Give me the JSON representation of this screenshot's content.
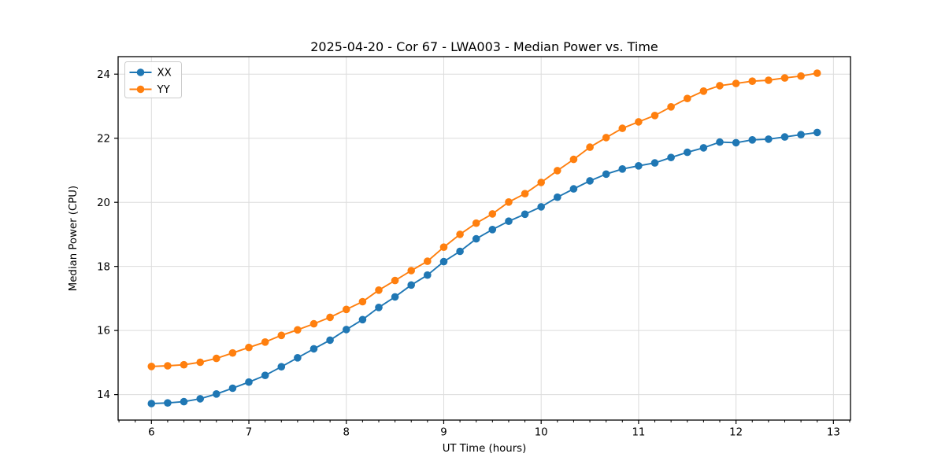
{
  "figure": {
    "background": "#ffffff"
  },
  "chart_data": {
    "type": "line",
    "title": "2025-04-20 - Cor 67 - LWA003 - Median Power vs. Time",
    "xlabel": "UT Time (hours)",
    "ylabel": "Median Power (CPU)",
    "x": [
      6.0,
      6.1667,
      6.3333,
      6.5,
      6.6667,
      6.8333,
      7.0,
      7.1667,
      7.3333,
      7.5,
      7.6667,
      7.8333,
      8.0,
      8.1667,
      8.3333,
      8.5,
      8.6667,
      8.8333,
      9.0,
      9.1667,
      9.3333,
      9.5,
      9.6667,
      9.8333,
      10.0,
      10.1667,
      10.3333,
      10.5,
      10.6667,
      10.8333,
      11.0,
      11.1667,
      11.3333,
      11.5,
      11.6667,
      11.8333,
      12.0,
      12.1667,
      12.3333,
      12.5,
      12.6667,
      12.8333
    ],
    "series": [
      {
        "name": "XX",
        "color": "#1f77b4",
        "values": [
          13.72,
          13.74,
          13.78,
          13.87,
          14.02,
          14.2,
          14.39,
          14.6,
          14.87,
          15.15,
          15.43,
          15.7,
          16.03,
          16.34,
          16.72,
          17.05,
          17.42,
          17.73,
          18.15,
          18.47,
          18.86,
          19.15,
          19.41,
          19.63,
          19.86,
          20.16,
          20.42,
          20.67,
          20.88,
          21.04,
          21.14,
          21.23,
          21.4,
          21.56,
          21.7,
          21.88,
          21.86,
          21.95,
          21.97,
          22.04,
          22.11,
          22.18
        ]
      },
      {
        "name": "YY",
        "color": "#ff7f0e",
        "values": [
          14.88,
          14.9,
          14.93,
          15.01,
          15.13,
          15.3,
          15.47,
          15.64,
          15.85,
          16.02,
          16.21,
          16.41,
          16.66,
          16.9,
          17.26,
          17.56,
          17.87,
          18.16,
          18.6,
          19.0,
          19.35,
          19.64,
          20.01,
          20.27,
          20.62,
          20.99,
          21.34,
          21.72,
          22.02,
          22.31,
          22.51,
          22.71,
          22.98,
          23.24,
          23.47,
          23.64,
          23.71,
          23.78,
          23.81,
          23.88,
          23.94,
          24.03
        ]
      }
    ],
    "x_ticks": [
      6,
      7,
      8,
      9,
      10,
      11,
      12,
      13
    ],
    "y_ticks": [
      14,
      16,
      18,
      20,
      22,
      24
    ],
    "x_minor_ticks_per_hour": 6,
    "xlim": [
      5.658,
      13.175
    ],
    "ylim": [
      13.205,
      24.546
    ],
    "grid": true,
    "legend": {
      "position": "upper left",
      "entries": [
        "XX",
        "YY"
      ]
    },
    "colors": {
      "grid": "#dcdcdc",
      "spine": "#000000",
      "text": "#000000",
      "legend_border": "#cccccc",
      "legend_background": "#ffffff"
    }
  }
}
